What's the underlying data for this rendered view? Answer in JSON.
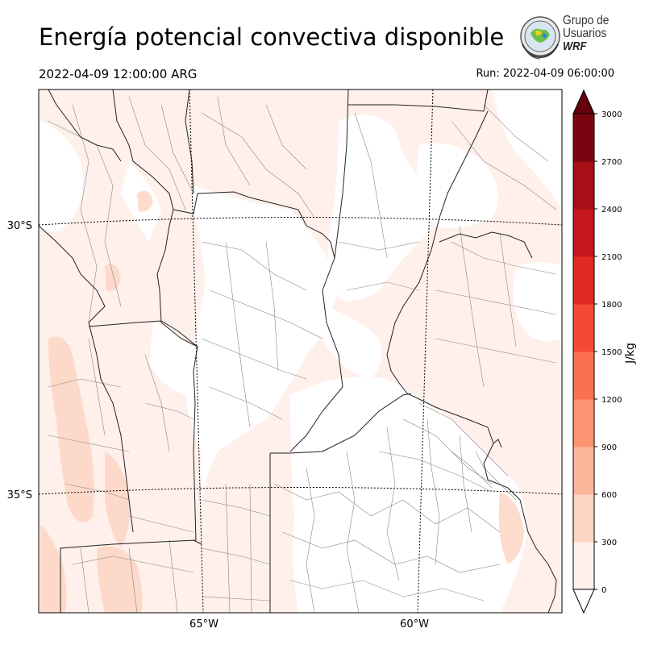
{
  "header": {
    "title": "Energía potencial convectiva disponible",
    "valid_time": "2022-04-09 12:00:00 ARG",
    "run_time": "Run: 2022-04-09 06:00:00"
  },
  "logo": {
    "line1": "Grupo de",
    "line2": "Usuarios",
    "line3": "WRF"
  },
  "map": {
    "variable": "CAPE",
    "lat_labels": [
      "30°S",
      "35°S"
    ],
    "lon_labels": [
      "65°W",
      "60°W"
    ]
  },
  "colorbar": {
    "unit_label": "J/kg",
    "ticks": [
      "0",
      "300",
      "600",
      "900",
      "1200",
      "1500",
      "1800",
      "2100",
      "2400",
      "2700",
      "3000"
    ],
    "colors": [
      "#fff0eb",
      "#fdd5c4",
      "#fcb69c",
      "#fc9373",
      "#fb7050",
      "#f34a35",
      "#e12a24",
      "#c4161c",
      "#a50f15",
      "#7a0510"
    ]
  }
}
